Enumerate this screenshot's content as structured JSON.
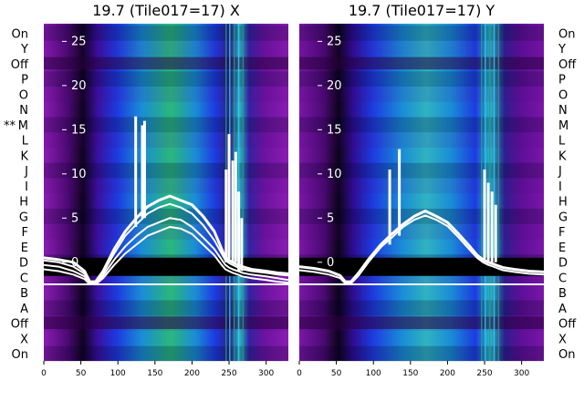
{
  "chart_data": {
    "type": "heatmap",
    "row_labels": [
      "On",
      "Y",
      "Off",
      "P",
      "O",
      "N",
      "M",
      "L",
      "K",
      "J",
      "I",
      "H",
      "G",
      "F",
      "E",
      "D",
      "C",
      "B",
      "A",
      "Off",
      "X",
      "On"
    ],
    "marked_row": {
      "prefix": "** ",
      "label": "M"
    },
    "colors": {
      "background_purple": "#7d0fa5",
      "trace": "#ffffff",
      "zero_band": "#000000",
      "separator": "#ffffff"
    },
    "panels": [
      {
        "title": "19.7 (Tile017=17) X",
        "x_ticks": [
          0,
          50,
          100,
          150,
          200,
          250,
          300
        ],
        "xlim": [
          0,
          330
        ],
        "y_ticks": [
          0,
          5,
          10,
          15,
          20,
          25
        ],
        "y_tick_labels": [
          "0",
          "5",
          "10",
          "15",
          "20",
          "25"
        ],
        "ylim": [
          -2.5,
          27
        ],
        "series": [
          {
            "x": [
              0,
              20,
              40,
              55,
              62,
              70,
              80,
              95,
              110,
              125,
              140,
              155,
              170,
              185,
              200,
              215,
              230,
              240,
              245,
              250,
              255,
              262,
              268,
              280,
              300,
              315,
              330
            ],
            "y": [
              0.5,
              0.3,
              0,
              -1,
              -2.2,
              -2.2,
              -1,
              1.5,
              3.5,
              5,
              6.3,
              7,
              7.5,
              7,
              6.5,
              5.2,
              3.5,
              1.5,
              0.5,
              0.2,
              0,
              -0.3,
              -0.5,
              -0.8,
              -1,
              -1.2,
              -1.3
            ]
          },
          {
            "x": [
              0,
              20,
              40,
              55,
              62,
              70,
              80,
              95,
              110,
              125,
              140,
              155,
              170,
              185,
              200,
              215,
              230,
              240,
              245,
              250,
              255,
              262,
              268,
              280,
              300,
              315,
              330
            ],
            "y": [
              0.2,
              0,
              -0.5,
              -1.3,
              -2.3,
              -2.3,
              -1.2,
              1,
              3,
              4.3,
              5.5,
              6.2,
              6.6,
              6.2,
              5.5,
              4.2,
              2.5,
              1,
              0.2,
              -0.1,
              -0.3,
              -0.6,
              -0.8,
              -1,
              -1.2,
              -1.4,
              -1.5
            ]
          },
          {
            "x": [
              0,
              20,
              40,
              55,
              62,
              70,
              80,
              95,
              110,
              125,
              140,
              155,
              170,
              185,
              200,
              215,
              230,
              240,
              245,
              250,
              255,
              262,
              268,
              280,
              300,
              315,
              330
            ],
            "y": [
              -0.3,
              -0.5,
              -1,
              -1.6,
              -2.4,
              -2.4,
              -1.5,
              0.3,
              1.8,
              3,
              4,
              4.5,
              5,
              4.8,
              4,
              2.8,
              1.5,
              0.3,
              -0.3,
              -0.6,
              -0.8,
              -1,
              -1.2,
              -1.4,
              -1.6,
              -1.8,
              -2
            ]
          },
          {
            "x": [
              0,
              20,
              40,
              55,
              62,
              70,
              80,
              95,
              110,
              125,
              140,
              155,
              170,
              185,
              200,
              215,
              230,
              240,
              245,
              250,
              255,
              262,
              268,
              280,
              300,
              315,
              330
            ],
            "y": [
              -0.8,
              -1,
              -1.4,
              -1.9,
              -2.5,
              -2.5,
              -1.8,
              -0.3,
              1,
              2,
              3,
              3.5,
              4,
              3.8,
              3.2,
              2,
              0.8,
              -0.3,
              -0.8,
              -1,
              -1.2,
              -1.4,
              -1.6,
              -1.8,
              -2,
              -2.2,
              -2.3
            ]
          }
        ],
        "spikes": [
          {
            "x": 124,
            "from": 4,
            "to": 16.5
          },
          {
            "x": 133,
            "from": 5,
            "to": 15.5
          },
          {
            "x": 136,
            "from": 5,
            "to": 16
          },
          {
            "x": 246,
            "from": 0,
            "to": 10.5
          },
          {
            "x": 250,
            "from": 0,
            "to": 14.5
          },
          {
            "x": 255,
            "from": 0,
            "to": 11.5
          },
          {
            "x": 259,
            "from": 0,
            "to": 12.5
          },
          {
            "x": 263,
            "from": -1,
            "to": 8
          },
          {
            "x": 267,
            "from": -1,
            "to": 5
          }
        ]
      },
      {
        "title": "19.7 (Tile017=17) Y",
        "x_ticks": [
          0,
          50,
          100,
          150,
          200,
          250,
          300
        ],
        "xlim": [
          0,
          330
        ],
        "y_ticks": [
          0,
          5,
          10,
          15,
          20,
          25
        ],
        "y_tick_labels": [
          "0",
          "5",
          "10",
          "15",
          "20",
          "25"
        ],
        "ylim": [
          -2.5,
          27
        ],
        "series": [
          {
            "x": [
              0,
              20,
              40,
              55,
              62,
              70,
              80,
              95,
              110,
              125,
              140,
              155,
              170,
              185,
              200,
              215,
              230,
              240,
              248,
              255,
              262,
              268,
              275,
              290,
              310,
              330
            ],
            "y": [
              -0.5,
              -0.7,
              -1,
              -1.5,
              -2.2,
              -2.2,
              -1.2,
              0.5,
              2,
              3.2,
              4.3,
              5.2,
              5.8,
              5.2,
              4.5,
              3.2,
              1.8,
              0.8,
              0.3,
              0,
              -0.2,
              -0.4,
              -0.6,
              -0.8,
              -1,
              -1.1
            ]
          },
          {
            "x": [
              0,
              20,
              40,
              55,
              62,
              70,
              80,
              95,
              110,
              125,
              140,
              155,
              170,
              185,
              200,
              215,
              230,
              240,
              248,
              255,
              262,
              268,
              275,
              290,
              310,
              330
            ],
            "y": [
              -0.9,
              -1.1,
              -1.4,
              -1.8,
              -2.4,
              -2.4,
              -1.5,
              0.2,
              1.7,
              2.8,
              4,
              4.8,
              5.3,
              4.8,
              4.1,
              2.8,
              1.4,
              0.5,
              0,
              -0.3,
              -0.5,
              -0.7,
              -0.9,
              -1.1,
              -1.3,
              -1.4
            ]
          }
        ],
        "spikes": [
          {
            "x": 122,
            "from": 2,
            "to": 10.5
          },
          {
            "x": 135,
            "from": 3,
            "to": 12.8
          },
          {
            "x": 250,
            "from": 0,
            "to": 10.5
          },
          {
            "x": 255,
            "from": 0,
            "to": 9
          },
          {
            "x": 260,
            "from": 0,
            "to": 8
          },
          {
            "x": 265,
            "from": 0,
            "to": 6.5
          }
        ]
      }
    ]
  }
}
